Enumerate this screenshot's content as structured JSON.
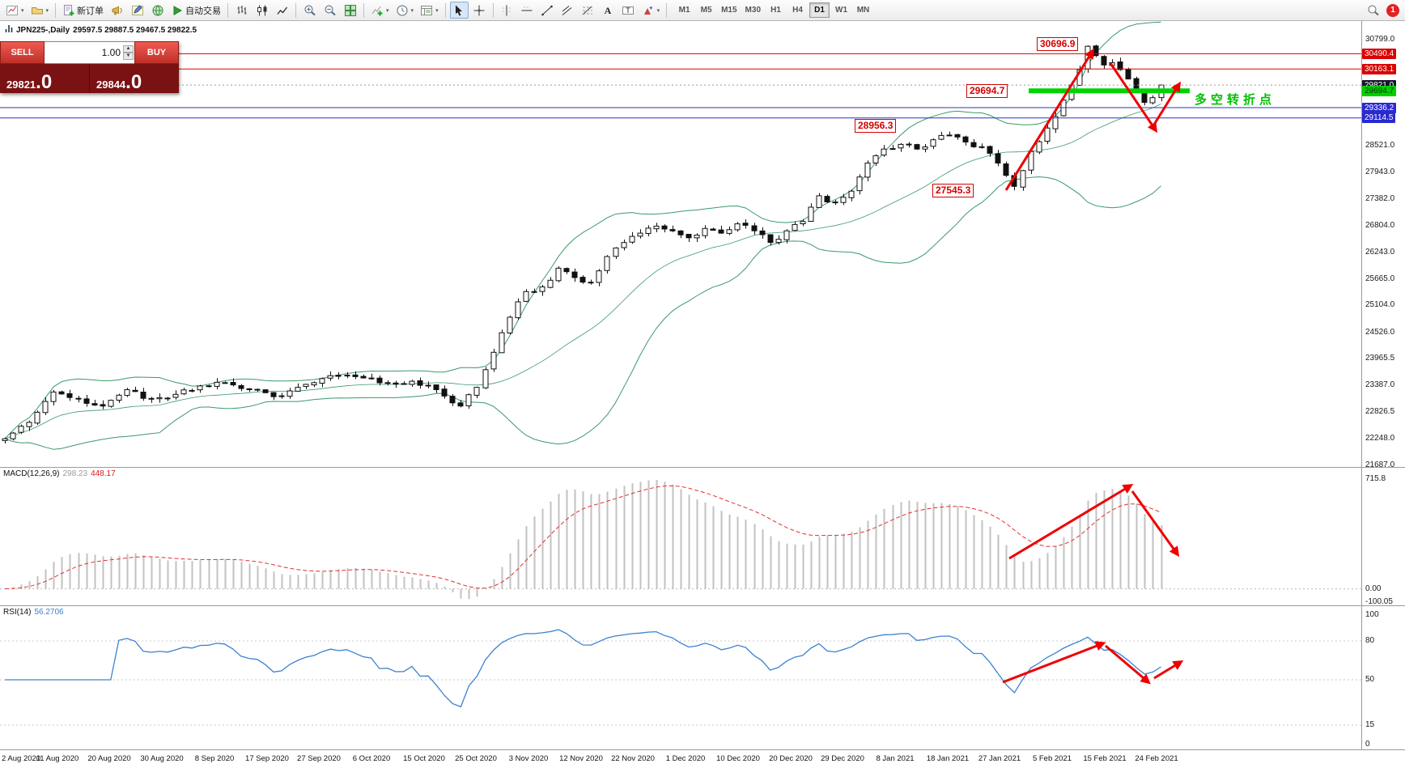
{
  "toolbar": {
    "caret_glyph": "▾",
    "badge_count": "1",
    "timeframes": [
      "M1",
      "M5",
      "M15",
      "M30",
      "H1",
      "H4",
      "D1",
      "W1",
      "MN"
    ],
    "active_timeframe": "D1",
    "items": [
      {
        "icon": "new-chart-icon",
        "caret": true
      },
      {
        "icon": "profiles-icon",
        "caret": true
      },
      {
        "sep": true
      },
      {
        "icon": "new-order-icon",
        "label": "新订单"
      },
      {
        "icon": "alerts-icon"
      },
      {
        "icon": "metaeditor-icon"
      },
      {
        "icon": "market-icon"
      },
      {
        "icon": "autotrading-icon",
        "label": "自动交易"
      },
      {
        "sep": true
      },
      {
        "icon": "bar-chart-icon"
      },
      {
        "icon": "candlestick-chart-icon"
      },
      {
        "icon": "line-chart-icon"
      },
      {
        "sep": true
      },
      {
        "icon": "zoom-in-icon"
      },
      {
        "icon": "zoom-out-icon"
      },
      {
        "icon": "tile-windows-icon"
      },
      {
        "sep": true
      },
      {
        "icon": "indicators-icon",
        "caret": true
      },
      {
        "icon": "periods-icon",
        "caret": true
      },
      {
        "icon": "templates-icon",
        "caret": true
      },
      {
        "sep": true
      },
      {
        "icon": "cursor-icon",
        "active": true
      },
      {
        "icon": "crosshair-icon"
      },
      {
        "sep": true
      },
      {
        "icon": "vertical-line-icon"
      },
      {
        "icon": "horizontal-line-icon"
      },
      {
        "icon": "trendline-icon"
      },
      {
        "icon": "channel-icon"
      },
      {
        "icon": "fibonacci-icon"
      },
      {
        "icon": "text-icon"
      },
      {
        "icon": "label-icon"
      },
      {
        "icon": "arrows-icon",
        "caret": true
      },
      {
        "sep": true
      }
    ]
  },
  "symbol_bar": {
    "symbol": "JPN225-,Daily",
    "ohlc": "29597.5 29887.5 29467.5 29822.5"
  },
  "trade_panel": {
    "sell_label": "SELL",
    "buy_label": "BUY",
    "volume": "1.00",
    "spin_up": "▲",
    "spin_down": "▼",
    "sell_price": "29821",
    "sell_price_frac": ".0",
    "buy_price": "29844",
    "buy_price_frac": ".0"
  },
  "callouts": {
    "high": "30696.9",
    "pivot": "29694.7",
    "breakout": "28956.3",
    "low": "27545.3"
  },
  "green_zone": {
    "price": 29694.7,
    "color": "#00d400",
    "label": "29694.7",
    "note": "多空转折点"
  },
  "levels": [
    {
      "price": 30490.4,
      "color": "#dd0000",
      "width": 1
    },
    {
      "price": 30163.1,
      "color": "#dd0000",
      "width": 1
    },
    {
      "price": 29336.2,
      "color": "#3030c0",
      "width": 1
    },
    {
      "price": 29114.5,
      "color": "#3030c0",
      "width": 1
    }
  ],
  "price_scale": {
    "regular": [
      "30799.0",
      "28521.0",
      "27943.0",
      "27382.0",
      "26804.0",
      "26243.0",
      "25665.0",
      "25104.0",
      "24526.0",
      "23965.5",
      "23387.0",
      "22826.5",
      "22248.0",
      "21687.0"
    ],
    "special": [
      {
        "value": "30490.4",
        "bg": "#dd0000",
        "fg": "#ffffff"
      },
      {
        "value": "30163.1",
        "bg": "#dd0000",
        "fg": "#ffffff"
      },
      {
        "value": "29821.0",
        "bg": "#15152a",
        "fg": "#ffffff"
      },
      {
        "value": "29694.7",
        "bg": "#00cf00",
        "fg": "#003300"
      },
      {
        "value": "29336.2",
        "bg": "#2a2ad0",
        "fg": "#ffffff"
      },
      {
        "value": "29114.5",
        "bg": "#2a2ad0",
        "fg": "#ffffff"
      }
    ]
  },
  "macd": {
    "header": "MACD(12,26,9)",
    "value1": "298.23",
    "value2": "448.17",
    "scale": [
      "715.8",
      "0.00",
      "-100.05"
    ]
  },
  "rsi": {
    "header": "RSI(14)",
    "value": "56.2706",
    "scale": [
      "100",
      "80",
      "50",
      "15",
      "0"
    ],
    "levels": [
      80,
      50,
      15
    ]
  },
  "time_axis": [
    "2 Aug 2020",
    "11 Aug 2020",
    "20 Aug 2020",
    "30 Aug 2020",
    "8 Sep 2020",
    "17 Sep 2020",
    "27 Sep 2020",
    "6 Oct 2020",
    "15 Oct 2020",
    "25 Oct 2020",
    "3 Nov 2020",
    "12 Nov 2020",
    "22 Nov 2020",
    "1 Dec 2020",
    "10 Dec 2020",
    "20 Dec 2020",
    "29 Dec 2020",
    "8 Jan 2021",
    "18 Jan 2021",
    "27 Jan 2021",
    "5 Feb 2021",
    "15 Feb 2021",
    "24 Feb 2021"
  ],
  "chart_data": {
    "type": "candlestick",
    "symbol": "JPN225",
    "timeframe": "Daily",
    "current_ohlc": {
      "open": 29597.5,
      "high": 29887.5,
      "low": 29467.5,
      "close": 29822.5
    },
    "bid": 29821.0,
    "ask": 29844.0,
    "visible_price_range": [
      21687.0,
      30799.0
    ],
    "overlays": [
      {
        "name": "Bollinger Bands",
        "period": 20,
        "deviation": 2
      }
    ],
    "indicators": [
      {
        "name": "MACD",
        "params": [
          12,
          26,
          9
        ],
        "values": [
          298.23,
          448.17
        ],
        "scale_max": 715.8,
        "scale_min": -100.05
      },
      {
        "name": "RSI",
        "params": [
          14
        ],
        "value": 56.2706,
        "levels": [
          80,
          50,
          15
        ]
      }
    ],
    "key_levels": {
      "swing_high": 30696.9,
      "resistance": [
        30490.4,
        30163.1
      ],
      "pivot": 29694.7,
      "breakout_base": 28956.3,
      "swing_low": 27545.3,
      "support": [
        29336.2,
        29114.5
      ]
    },
    "anchors_close": [
      [
        0,
        22250
      ],
      [
        3,
        22600
      ],
      [
        6,
        23250
      ],
      [
        9,
        23100
      ],
      [
        12,
        22950
      ],
      [
        15,
        23300
      ],
      [
        18,
        23100
      ],
      [
        21,
        23200
      ],
      [
        24,
        23380
      ],
      [
        27,
        23450
      ],
      [
        30,
        23300
      ],
      [
        33,
        23150
      ],
      [
        36,
        23350
      ],
      [
        40,
        23600
      ],
      [
        44,
        23550
      ],
      [
        47,
        23450
      ],
      [
        50,
        23480
      ],
      [
        53,
        23300
      ],
      [
        56,
        22950
      ],
      [
        58,
        23350
      ],
      [
        60,
        24100
      ],
      [
        62,
        24850
      ],
      [
        64,
        25400
      ],
      [
        66,
        25500
      ],
      [
        68,
        25900
      ],
      [
        70,
        25700
      ],
      [
        72,
        25600
      ],
      [
        74,
        26150
      ],
      [
        76,
        26450
      ],
      [
        78,
        26650
      ],
      [
        80,
        26800
      ],
      [
        82,
        26700
      ],
      [
        84,
        26550
      ],
      [
        86,
        26750
      ],
      [
        88,
        26650
      ],
      [
        90,
        26850
      ],
      [
        92,
        26700
      ],
      [
        94,
        26450
      ],
      [
        96,
        26700
      ],
      [
        98,
        26900
      ],
      [
        100,
        27450
      ],
      [
        102,
        27300
      ],
      [
        104,
        27550
      ],
      [
        106,
        28150
      ],
      [
        108,
        28450
      ],
      [
        110,
        28550
      ],
      [
        112,
        28450
      ],
      [
        114,
        28650
      ],
      [
        116,
        28750
      ],
      [
        118,
        28600
      ],
      [
        120,
        28500
      ],
      [
        122,
        28150
      ],
      [
        124,
        27650
      ],
      [
        126,
        28400
      ],
      [
        128,
        28900
      ],
      [
        130,
        29500
      ],
      [
        132,
        30150
      ],
      [
        133,
        30650
      ],
      [
        134,
        30450
      ],
      [
        135,
        30250
      ],
      [
        136,
        30300
      ],
      [
        137,
        30150
      ],
      [
        138,
        29950
      ],
      [
        139,
        29700
      ],
      [
        140,
        29450
      ],
      [
        141,
        29550
      ],
      [
        142,
        29820
      ]
    ]
  }
}
